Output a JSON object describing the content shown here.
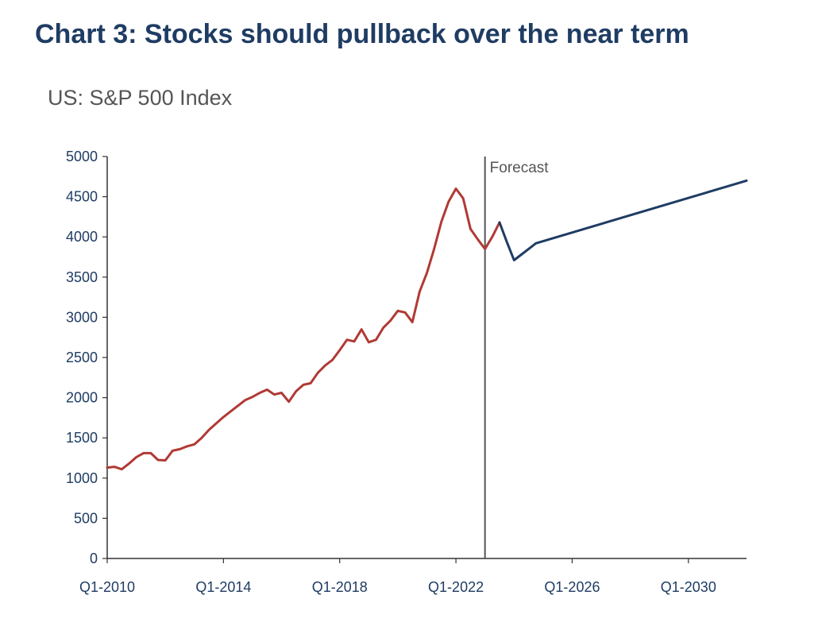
{
  "chart_data": {
    "type": "line",
    "title": "Chart 3: Stocks should pullback over the near term",
    "subtitle": "US: S&P 500 Index",
    "xlabel": "",
    "ylabel": "",
    "ylim": [
      0,
      5000
    ],
    "xlim": [
      "Q1-2010",
      "Q1-2032"
    ],
    "yticks": [
      0,
      500,
      1000,
      1500,
      2000,
      2500,
      3000,
      3500,
      4000,
      4500,
      5000
    ],
    "xticks": [
      "Q1-2010",
      "Q1-2014",
      "Q1-2018",
      "Q1-2022",
      "Q1-2026",
      "Q1-2030"
    ],
    "grid": false,
    "colors": {
      "actual": "#b03a35",
      "forecast": "#1f3c63",
      "divider": "#555555",
      "axis": "#333333",
      "text": "#1f3c63"
    },
    "annotations": [
      {
        "text": "Forecast",
        "x": "Q1-2023"
      }
    ],
    "series": [
      {
        "values": [
          [
            "Q1-2010",
            1130
          ],
          [
            "Q2-2010",
            1140
          ],
          [
            "Q3-2010",
            1110
          ],
          [
            "Q4-2010",
            1180
          ],
          [
            "Q1-2011",
            1260
          ],
          [
            "Q2-2011",
            1310
          ],
          [
            "Q3-2011",
            1310
          ],
          [
            "Q4-2011",
            1225
          ],
          [
            "Q1-2012",
            1220
          ],
          [
            "Q2-2012",
            1340
          ],
          [
            "Q3-2012",
            1360
          ],
          [
            "Q4-2012",
            1395
          ],
          [
            "Q1-2013",
            1420
          ],
          [
            "Q2-2013",
            1500
          ],
          [
            "Q3-2013",
            1600
          ],
          [
            "Q4-2013",
            1680
          ],
          [
            "Q1-2014",
            1760
          ],
          [
            "Q2-2014",
            1830
          ],
          [
            "Q3-2014",
            1900
          ],
          [
            "Q4-2014",
            1970
          ],
          [
            "Q1-2015",
            2010
          ],
          [
            "Q2-2015",
            2060
          ],
          [
            "Q3-2015",
            2100
          ],
          [
            "Q4-2015",
            2040
          ],
          [
            "Q1-2016",
            2060
          ],
          [
            "Q2-2016",
            1950
          ],
          [
            "Q3-2016",
            2080
          ],
          [
            "Q4-2016",
            2160
          ],
          [
            "Q1-2017",
            2180
          ],
          [
            "Q2-2017",
            2310
          ],
          [
            "Q3-2017",
            2400
          ],
          [
            "Q4-2017",
            2470
          ],
          [
            "Q1-2018",
            2590
          ],
          [
            "Q2-2018",
            2720
          ],
          [
            "Q3-2018",
            2700
          ],
          [
            "Q4-2018",
            2850
          ],
          [
            "Q1-2019",
            2690
          ],
          [
            "Q2-2019",
            2720
          ],
          [
            "Q3-2019",
            2870
          ],
          [
            "Q4-2019",
            2960
          ],
          [
            "Q1-2020",
            3080
          ],
          [
            "Q2-2020",
            3060
          ],
          [
            "Q3-2020",
            2940
          ],
          [
            "Q4-2020",
            3320
          ],
          [
            "Q1-2021",
            3550
          ],
          [
            "Q2-2021",
            3850
          ],
          [
            "Q3-2021",
            4190
          ],
          [
            "Q4-2021",
            4440
          ],
          [
            "Q1-2022",
            4600
          ],
          [
            "Q2-2022",
            4480
          ],
          [
            "Q3-2022",
            4100
          ],
          [
            "Q4-2022",
            3970
          ],
          [
            "Q1-2023",
            3850
          ],
          [
            "Q2-2023",
            4000
          ],
          [
            "Q3-2023",
            4180
          ]
        ]
      },
      {
        "values": [
          [
            "Q3-2023",
            4180
          ],
          [
            "Q4-2023",
            3940
          ],
          [
            "Q1-2024",
            3710
          ],
          [
            "Q2-2024",
            3780
          ],
          [
            "Q3-2024",
            3850
          ],
          [
            "Q4-2024",
            3920
          ],
          [
            "Q1-2032",
            4700
          ]
        ]
      }
    ]
  }
}
